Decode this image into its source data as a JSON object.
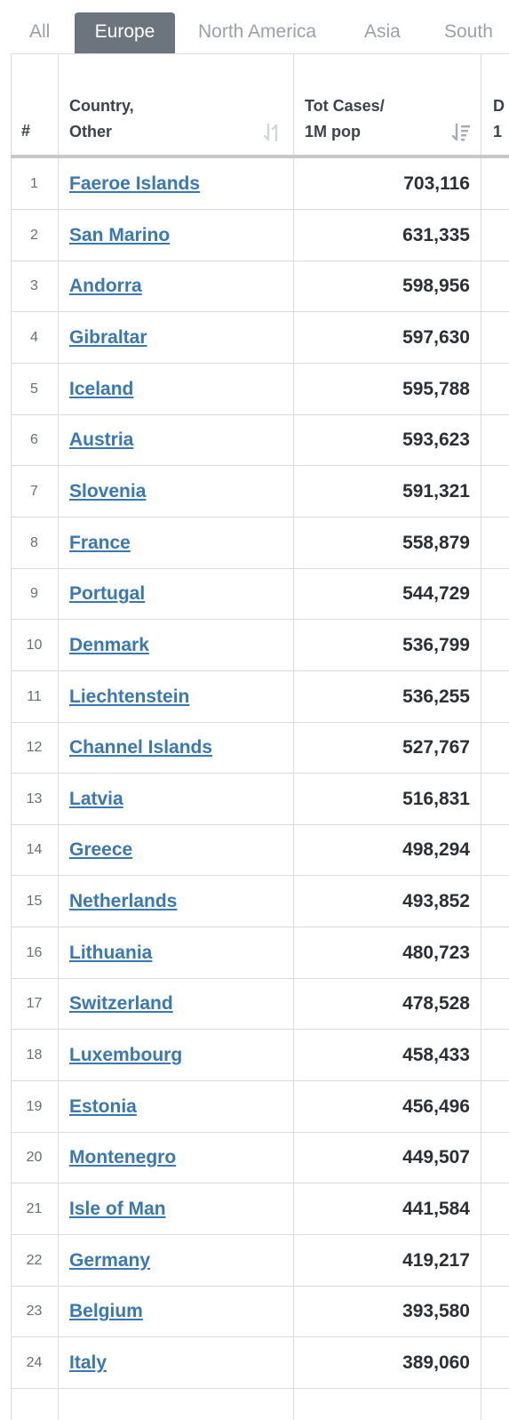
{
  "tabs": [
    {
      "label": "All"
    },
    {
      "label": "Europe",
      "active": true
    },
    {
      "label": "North America"
    },
    {
      "label": "Asia"
    },
    {
      "label": "South"
    }
  ],
  "table": {
    "headers": {
      "rank": "#",
      "country_line1": "Country,",
      "country_line2": "Other",
      "cases_line1": "Tot Cases/",
      "cases_line2": "1M pop",
      "next_line1": "D",
      "next_line2": "1"
    },
    "sort_icons": {
      "country": "sort-neutral-icon",
      "cases": "sort-descending-icon"
    },
    "rows": [
      {
        "rank": "1",
        "country": "Faeroe Islands",
        "cases_per_1m": "703,116"
      },
      {
        "rank": "2",
        "country": "San Marino",
        "cases_per_1m": "631,335"
      },
      {
        "rank": "3",
        "country": "Andorra",
        "cases_per_1m": "598,956"
      },
      {
        "rank": "4",
        "country": "Gibraltar",
        "cases_per_1m": "597,630"
      },
      {
        "rank": "5",
        "country": "Iceland",
        "cases_per_1m": "595,788"
      },
      {
        "rank": "6",
        "country": "Austria",
        "cases_per_1m": "593,623"
      },
      {
        "rank": "7",
        "country": "Slovenia",
        "cases_per_1m": "591,321"
      },
      {
        "rank": "8",
        "country": "France",
        "cases_per_1m": "558,879"
      },
      {
        "rank": "9",
        "country": "Portugal",
        "cases_per_1m": "544,729"
      },
      {
        "rank": "10",
        "country": "Denmark",
        "cases_per_1m": "536,799"
      },
      {
        "rank": "11",
        "country": "Liechtenstein",
        "cases_per_1m": "536,255"
      },
      {
        "rank": "12",
        "country": "Channel Islands",
        "cases_per_1m": "527,767"
      },
      {
        "rank": "13",
        "country": "Latvia",
        "cases_per_1m": "516,831"
      },
      {
        "rank": "14",
        "country": "Greece",
        "cases_per_1m": "498,294"
      },
      {
        "rank": "15",
        "country": "Netherlands",
        "cases_per_1m": "493,852"
      },
      {
        "rank": "16",
        "country": "Lithuania",
        "cases_per_1m": "480,723"
      },
      {
        "rank": "17",
        "country": "Switzerland",
        "cases_per_1m": "478,528"
      },
      {
        "rank": "18",
        "country": "Luxembourg",
        "cases_per_1m": "458,433"
      },
      {
        "rank": "19",
        "country": "Estonia",
        "cases_per_1m": "456,496"
      },
      {
        "rank": "20",
        "country": "Montenegro",
        "cases_per_1m": "449,507"
      },
      {
        "rank": "21",
        "country": "Isle of Man",
        "cases_per_1m": "441,584"
      },
      {
        "rank": "22",
        "country": "Germany",
        "cases_per_1m": "419,217"
      },
      {
        "rank": "23",
        "country": "Belgium",
        "cases_per_1m": "393,580"
      },
      {
        "rank": "24",
        "country": "Italy",
        "cases_per_1m": "389,060"
      }
    ]
  },
  "colors": {
    "tab_active_bg": "#6c757d",
    "tab_inactive_text": "#9ba1a8",
    "link": "#3a77b5",
    "value_text": "#2c3034",
    "grid": "#dcdcdc"
  }
}
